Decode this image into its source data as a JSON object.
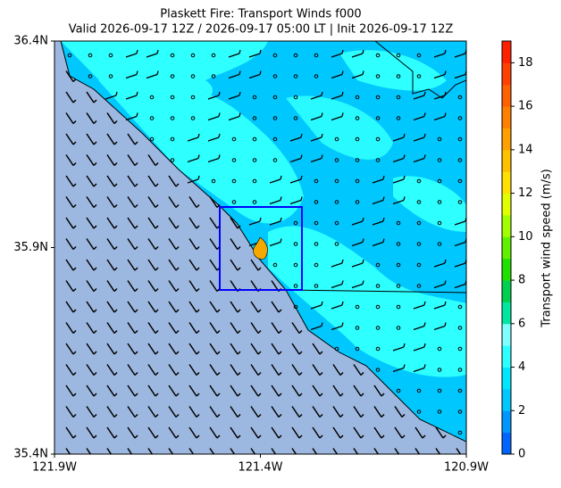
{
  "chart_data": {
    "type": "map",
    "title": "Plaskett Fire: Transport Winds f000",
    "subtitle": "Valid 2026-09-17 12Z / 2026-09-17 05:00 LT | Init 2026-09-17 12Z",
    "xlim": [
      -121.9,
      -120.9
    ],
    "ylim": [
      35.4,
      36.4
    ],
    "xticks": [
      {
        "value": -121.9,
        "label": "121.9W"
      },
      {
        "value": -121.4,
        "label": "121.4W"
      },
      {
        "value": -120.9,
        "label": "120.9W"
      }
    ],
    "yticks": [
      {
        "value": 35.4,
        "label": "35.4N"
      },
      {
        "value": 35.9,
        "label": "35.9N"
      },
      {
        "value": 36.4,
        "label": "36.4N"
      }
    ],
    "colorbar": {
      "label": "Transport wind speed (m/s)",
      "lim": [
        0,
        19
      ],
      "ticks": [
        0,
        2,
        4,
        6,
        8,
        10,
        12,
        14,
        16,
        18
      ],
      "colors": [
        "#0064ff",
        "#0096ff",
        "#00c8ff",
        "#00e6ff",
        "#2effff",
        "#7fffff",
        "#00e8a0",
        "#00d050",
        "#20e000",
        "#60f000",
        "#a0ff00",
        "#e0ff00",
        "#ffe000",
        "#ffc000",
        "#ffa000",
        "#ff8000",
        "#ff6000",
        "#ff4000",
        "#ff2000"
      ]
    }
  }
}
